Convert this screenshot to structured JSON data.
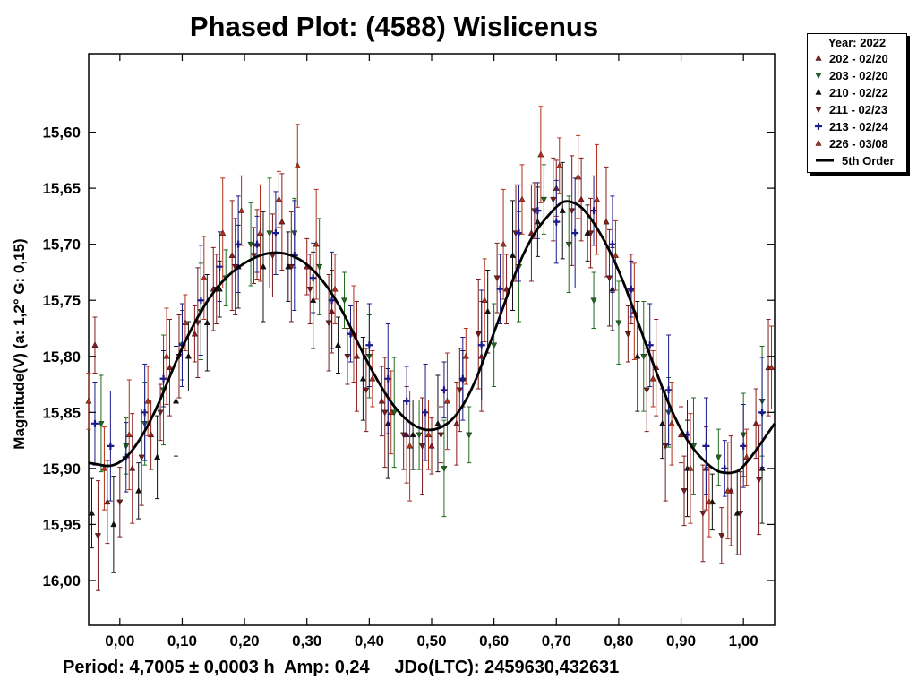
{
  "chart_data": {
    "type": "scatter",
    "title": "Phased Plot: (4588) Wislicenus",
    "ylabel": "Magnitude(V)   (a: 1,2°  G: 0,15)",
    "xlabel": "",
    "xlim": [
      -0.05,
      1.05
    ],
    "ylim": [
      16.04,
      15.53
    ],
    "x_ticks": [
      "0,00",
      "0,10",
      "0,20",
      "0,30",
      "0,40",
      "0,50",
      "0,60",
      "0,70",
      "0,80",
      "0,90",
      "1,00"
    ],
    "x_tick_values": [
      0,
      0.1,
      0.2,
      0.3,
      0.4,
      0.5,
      0.6,
      0.7,
      0.8,
      0.9,
      1.0
    ],
    "y_ticks": [
      "15,60",
      "15,65",
      "15,70",
      "15,75",
      "15,80",
      "15,85",
      "15,90",
      "15,95",
      "16,00"
    ],
    "y_tick_values": [
      15.6,
      15.65,
      15.7,
      15.75,
      15.8,
      15.85,
      15.9,
      15.95,
      16.0
    ],
    "legend": {
      "title": "Year: 2022",
      "entries": [
        {
          "label": "202 - 02/20",
          "marker": "triangle-up",
          "color": "#8b1a1a"
        },
        {
          "label": "203 - 02/20",
          "marker": "triangle-down",
          "color": "#1e6b1e"
        },
        {
          "label": "210 - 02/22",
          "marker": "triangle-up",
          "color": "#111111"
        },
        {
          "label": "211 - 02/23",
          "marker": "triangle-down",
          "color": "#7a1a1a"
        },
        {
          "label": "213 - 02/24",
          "marker": "plus",
          "color": "#1a1a8b"
        },
        {
          "label": "226 - 03/08",
          "marker": "triangle-up",
          "color": "#b03018"
        },
        {
          "label": "5th Order",
          "marker": "line",
          "color": "#000000"
        }
      ]
    },
    "fit_curve": {
      "name": "5th Order",
      "x": [
        -0.05,
        0.0,
        0.05,
        0.1,
        0.15,
        0.2,
        0.25,
        0.3,
        0.35,
        0.4,
        0.45,
        0.5,
        0.55,
        0.6,
        0.65,
        0.7,
        0.72,
        0.75,
        0.8,
        0.85,
        0.9,
        0.95,
        0.98,
        1.0,
        1.05
      ],
      "y": [
        15.895,
        15.9,
        15.86,
        15.79,
        15.74,
        15.715,
        15.705,
        15.715,
        15.75,
        15.81,
        15.855,
        15.87,
        15.85,
        15.78,
        15.7,
        15.665,
        15.66,
        15.67,
        15.72,
        15.8,
        15.87,
        15.902,
        15.905,
        15.9,
        15.86
      ]
    },
    "series": [
      {
        "name": "202 - 02/20",
        "marker": "triangle-up",
        "color": "#8b1a1a",
        "x": [
          -0.04,
          -0.02,
          0.02,
          0.05,
          0.08,
          0.12,
          0.15,
          0.18,
          0.22,
          0.26,
          0.3,
          0.34,
          0.38,
          0.42,
          0.46,
          0.5,
          0.54,
          0.58,
          0.62,
          0.66,
          0.7,
          0.74,
          0.78,
          0.82,
          0.86,
          0.9,
          0.94,
          0.98,
          1.02,
          1.04
        ],
        "y": [
          15.79,
          15.93,
          15.9,
          15.87,
          15.81,
          15.78,
          15.74,
          15.71,
          15.7,
          15.68,
          15.72,
          15.76,
          15.8,
          15.84,
          15.87,
          15.88,
          15.86,
          15.8,
          15.74,
          15.69,
          15.65,
          15.66,
          15.68,
          15.74,
          15.81,
          15.87,
          15.9,
          15.92,
          15.86,
          15.81
        ]
      },
      {
        "name": "203 - 02/20",
        "marker": "triangle-down",
        "color": "#1e6b1e",
        "x": [
          -0.03,
          0.01,
          0.04,
          0.07,
          0.1,
          0.13,
          0.17,
          0.21,
          0.24,
          0.28,
          0.32,
          0.36,
          0.4,
          0.44,
          0.48,
          0.52,
          0.56,
          0.6,
          0.64,
          0.68,
          0.72,
          0.76,
          0.8,
          0.84,
          0.88,
          0.92,
          0.96,
          1.0,
          1.03
        ],
        "y": [
          15.86,
          15.88,
          15.86,
          15.83,
          15.79,
          15.76,
          15.73,
          15.7,
          15.69,
          15.69,
          15.72,
          15.75,
          15.8,
          15.85,
          15.87,
          15.9,
          15.87,
          15.79,
          15.72,
          15.66,
          15.7,
          15.75,
          15.77,
          15.8,
          15.85,
          15.88,
          15.89,
          15.87,
          15.84
        ]
      },
      {
        "name": "210 - 02/22",
        "marker": "triangle-up",
        "color": "#111111",
        "x": [
          -0.045,
          -0.01,
          0.03,
          0.06,
          0.09,
          0.11,
          0.14,
          0.16,
          0.19,
          0.23,
          0.27,
          0.31,
          0.35,
          0.39,
          0.43,
          0.47,
          0.51,
          0.55,
          0.59,
          0.63,
          0.67,
          0.71,
          0.75,
          0.79,
          0.83,
          0.87,
          0.91,
          0.95,
          0.99,
          1.03
        ],
        "y": [
          15.94,
          15.95,
          15.92,
          15.89,
          15.84,
          15.8,
          15.77,
          15.74,
          15.72,
          15.72,
          15.72,
          15.75,
          15.79,
          15.82,
          15.86,
          15.87,
          15.86,
          15.82,
          15.76,
          15.71,
          15.68,
          15.67,
          15.69,
          15.74,
          15.8,
          15.86,
          15.9,
          15.93,
          15.94,
          15.9
        ]
      },
      {
        "name": "211 - 02/23",
        "marker": "triangle-down",
        "color": "#7a1a1a",
        "x": [
          -0.035,
          0.0,
          0.035,
          0.065,
          0.095,
          0.125,
          0.155,
          0.185,
          0.215,
          0.245,
          0.275,
          0.305,
          0.335,
          0.365,
          0.395,
          0.425,
          0.455,
          0.485,
          0.515,
          0.545,
          0.575,
          0.605,
          0.635,
          0.665,
          0.695,
          0.725,
          0.755,
          0.785,
          0.815,
          0.845,
          0.875,
          0.905,
          0.935,
          0.965,
          0.995,
          1.025
        ],
        "y": [
          15.96,
          15.93,
          15.89,
          15.85,
          15.8,
          15.77,
          15.74,
          15.72,
          15.71,
          15.71,
          15.72,
          15.74,
          15.77,
          15.8,
          15.83,
          15.85,
          15.87,
          15.88,
          15.87,
          15.83,
          15.78,
          15.73,
          15.69,
          15.67,
          15.66,
          15.67,
          15.69,
          15.73,
          15.78,
          15.83,
          15.88,
          15.92,
          15.94,
          15.96,
          15.94,
          15.91
        ]
      },
      {
        "name": "213 - 02/24",
        "marker": "plus",
        "color": "#1a1a8b",
        "x": [
          -0.04,
          -0.015,
          0.01,
          0.04,
          0.07,
          0.1,
          0.13,
          0.16,
          0.19,
          0.22,
          0.25,
          0.28,
          0.31,
          0.34,
          0.37,
          0.4,
          0.43,
          0.46,
          0.49,
          0.52,
          0.55,
          0.58,
          0.61,
          0.64,
          0.67,
          0.7,
          0.73,
          0.76,
          0.79,
          0.82,
          0.85,
          0.88,
          0.91,
          0.94,
          0.97,
          1.0,
          1.03
        ],
        "y": [
          15.86,
          15.88,
          15.89,
          15.85,
          15.82,
          15.79,
          15.75,
          15.72,
          15.7,
          15.7,
          15.69,
          15.71,
          15.73,
          15.75,
          15.78,
          15.79,
          15.82,
          15.84,
          15.85,
          15.83,
          15.82,
          15.79,
          15.74,
          15.69,
          15.67,
          15.68,
          15.69,
          15.67,
          15.7,
          15.74,
          15.79,
          15.83,
          15.87,
          15.88,
          15.9,
          15.88,
          15.85
        ]
      },
      {
        "name": "226 - 03/08",
        "marker": "triangle-up",
        "color": "#b03018",
        "x": [
          -0.05,
          -0.025,
          0.015,
          0.045,
          0.075,
          0.105,
          0.135,
          0.165,
          0.195,
          0.225,
          0.255,
          0.285,
          0.315,
          0.345,
          0.375,
          0.405,
          0.435,
          0.465,
          0.495,
          0.525,
          0.555,
          0.585,
          0.615,
          0.645,
          0.675,
          0.705,
          0.735,
          0.765,
          0.795,
          0.825,
          0.855,
          0.885,
          0.915,
          0.945,
          0.975,
          1.005,
          1.045
        ],
        "y": [
          15.84,
          15.9,
          15.87,
          15.84,
          15.8,
          15.77,
          15.73,
          15.69,
          15.67,
          15.69,
          15.66,
          15.63,
          15.7,
          15.74,
          15.78,
          15.82,
          15.85,
          15.88,
          15.87,
          15.84,
          15.8,
          15.75,
          15.7,
          15.66,
          15.62,
          15.63,
          15.64,
          15.66,
          15.71,
          15.76,
          15.82,
          15.86,
          15.9,
          15.93,
          15.92,
          15.89,
          15.81
        ]
      }
    ]
  },
  "footer": {
    "period": "Period: 4,7005 ± 0,0003 h",
    "amp": "Amp: 0,24",
    "epoch": "JDo(LTC): 2459630,432631"
  }
}
